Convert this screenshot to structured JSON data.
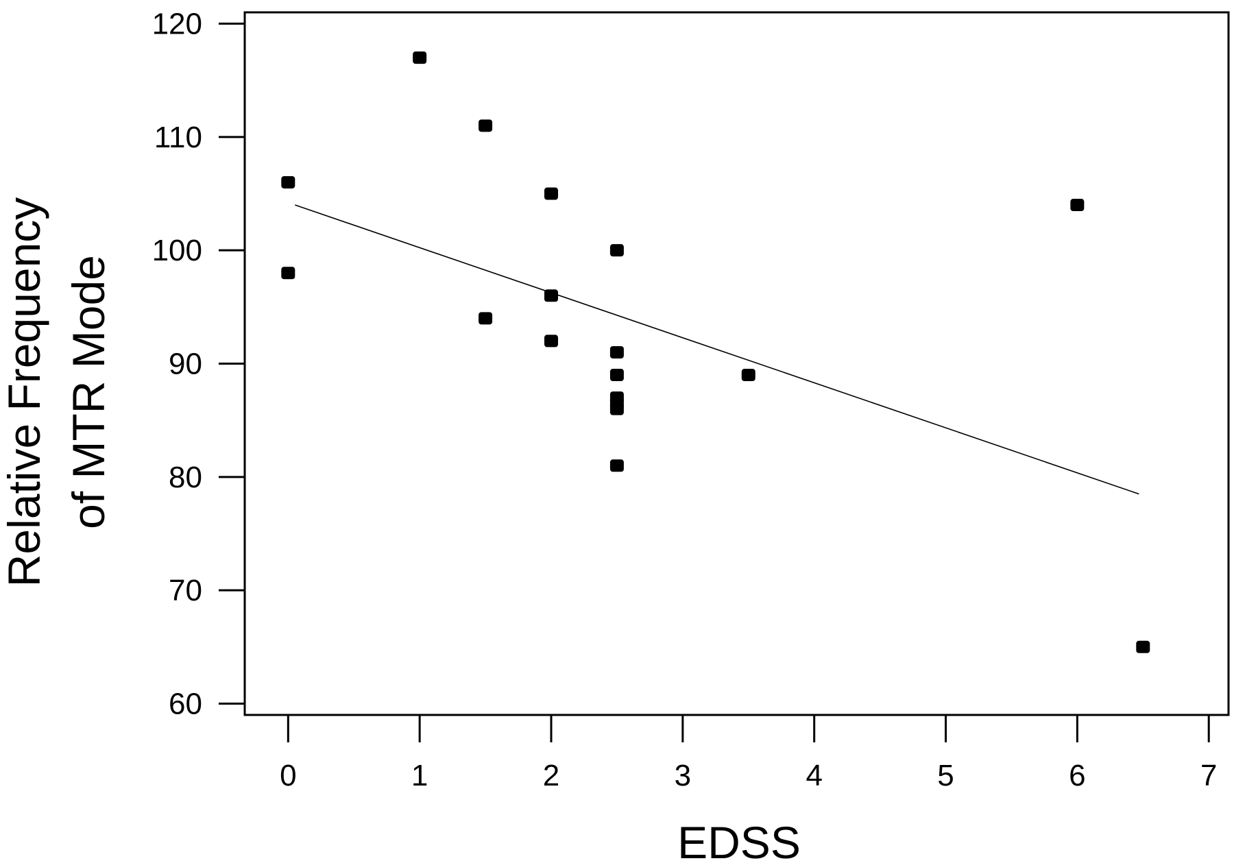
{
  "chart_data": {
    "type": "scatter",
    "title": "",
    "xlabel": "EDSS",
    "ylabel_lines": [
      "Relative Frequency",
      "of MTR Mode"
    ],
    "xlim": [
      -0.33,
      7.15
    ],
    "ylim": [
      59,
      121
    ],
    "x_ticks": [
      0,
      1,
      2,
      3,
      4,
      5,
      6,
      7
    ],
    "y_ticks": [
      60,
      70,
      80,
      90,
      100,
      110,
      120
    ],
    "grid": false,
    "legend": "none",
    "points": [
      {
        "x": 0,
        "y": 106
      },
      {
        "x": 0,
        "y": 98
      },
      {
        "x": 1,
        "y": 117
      },
      {
        "x": 1.5,
        "y": 111
      },
      {
        "x": 1.5,
        "y": 94
      },
      {
        "x": 2,
        "y": 105
      },
      {
        "x": 2,
        "y": 96
      },
      {
        "x": 2,
        "y": 92
      },
      {
        "x": 2.5,
        "y": 100
      },
      {
        "x": 2.5,
        "y": 91
      },
      {
        "x": 2.5,
        "y": 89
      },
      {
        "x": 2.5,
        "y": 87
      },
      {
        "x": 2.5,
        "y": 86.5
      },
      {
        "x": 2.5,
        "y": 86
      },
      {
        "x": 2.5,
        "y": 81
      },
      {
        "x": 3.5,
        "y": 89
      },
      {
        "x": 6,
        "y": 104
      },
      {
        "x": 6.5,
        "y": 65
      }
    ],
    "fit_line": {
      "x": [
        0,
        6.5
      ],
      "y": [
        104,
        78.5
      ]
    },
    "colors": {
      "marker": "#000000",
      "line": "#000000",
      "background": "#ffffff"
    }
  }
}
